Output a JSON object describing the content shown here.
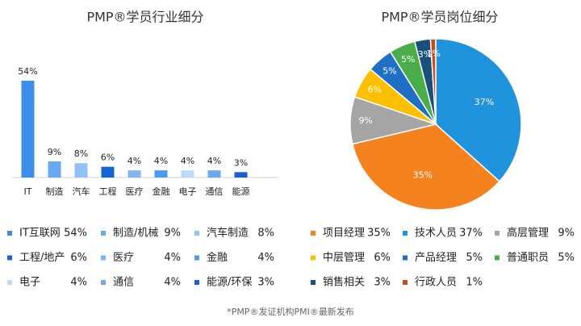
{
  "chart_data": [
    {
      "type": "bar",
      "title": "PMP®学员行业细分",
      "categories": [
        "IT",
        "制造",
        "汽车",
        "工程",
        "医疗",
        "金融",
        "电子",
        "通信",
        "能源"
      ],
      "legend_labels": [
        "IT互联网",
        "制造/机械",
        "汽车制造",
        "工程/地产",
        "医疗",
        "金融",
        "电子",
        "通信",
        "能源/环保"
      ],
      "values": [
        54,
        9,
        8,
        6,
        4,
        4,
        4,
        4,
        3
      ],
      "value_labels": [
        "54%",
        "9%",
        "8%",
        "6%",
        "4%",
        "4%",
        "4%",
        "4%",
        "3%"
      ],
      "colors": [
        "#3d8ee8",
        "#6aa9ef",
        "#93c0f5",
        "#1565d8",
        "#7fb5f2",
        "#4a9af0",
        "#bcd9f8",
        "#6aa9ef",
        "#1a5fd0"
      ]
    },
    {
      "type": "pie",
      "title": "PMP®学员岗位细分",
      "categories": [
        "技术人员",
        "项目经理",
        "高层管理",
        "中层管理",
        "产品经理",
        "普通职员",
        "销售相关",
        "行政人员"
      ],
      "values": [
        37,
        35,
        9,
        6,
        5,
        5,
        3,
        1
      ],
      "value_labels": [
        "37%",
        "35%",
        "9%",
        "6%",
        "5%",
        "5%",
        "3%",
        "1%"
      ],
      "colors": [
        "#1f93dc",
        "#f5821f",
        "#a5a5a5",
        "#fdc000",
        "#1f6fc5",
        "#4aad4a",
        "#1a4f7a",
        "#c0501f"
      ]
    }
  ],
  "footnote": "*PMP®发证机构PMI®最新发布"
}
